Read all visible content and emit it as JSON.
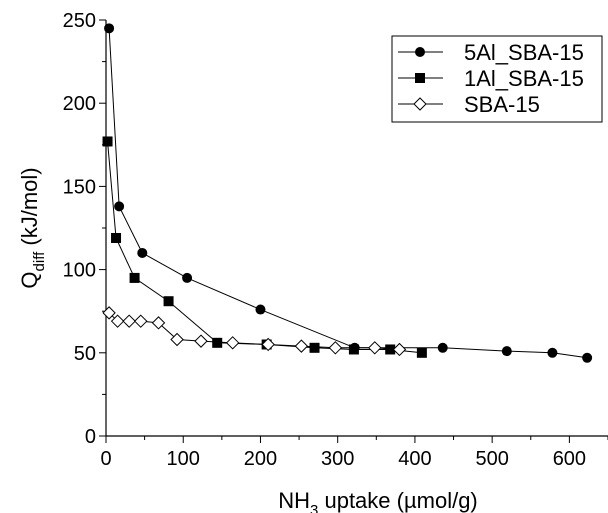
{
  "chart_data": {
    "type": "scatter",
    "xlabel_main": "NH",
    "xlabel_sub": "3",
    "xlabel_rest": " uptake (µmol/g)",
    "ylabel_main": "Q",
    "ylabel_sub": "diff",
    "ylabel_rest": " (kJ/mol)",
    "xlim": [
      0,
      650
    ],
    "ylim": [
      0,
      250
    ],
    "xticks": [
      0,
      100,
      200,
      300,
      400,
      500,
      600
    ],
    "yticks": [
      0,
      50,
      100,
      150,
      200,
      250
    ],
    "legend_position": "top-right",
    "series": [
      {
        "name": "5Al_SBA-15",
        "marker": "circle-filled",
        "color": "#000000",
        "points": [
          [
            4,
            245
          ],
          [
            17,
            138
          ],
          [
            47,
            110
          ],
          [
            105,
            95
          ],
          [
            200,
            76
          ],
          [
            322,
            53
          ],
          [
            436,
            53
          ],
          [
            519,
            51
          ],
          [
            578,
            50
          ],
          [
            623,
            47
          ]
        ]
      },
      {
        "name": "1Al_SBA-15",
        "marker": "square-filled",
        "color": "#000000",
        "points": [
          [
            2,
            177
          ],
          [
            13,
            119
          ],
          [
            37,
            95
          ],
          [
            81,
            81
          ],
          [
            144,
            56
          ],
          [
            208,
            55
          ],
          [
            270,
            53
          ],
          [
            321,
            52
          ],
          [
            368,
            52
          ],
          [
            409,
            50
          ]
        ]
      },
      {
        "name": "SBA-15",
        "marker": "diamond-open",
        "color": "#000000",
        "points": [
          [
            4,
            74
          ],
          [
            15,
            69
          ],
          [
            30,
            69
          ],
          [
            45,
            69
          ],
          [
            68,
            68
          ],
          [
            92,
            58
          ],
          [
            123,
            57
          ],
          [
            164,
            56
          ],
          [
            210,
            55
          ],
          [
            253,
            54
          ],
          [
            297,
            53
          ],
          [
            348,
            53
          ],
          [
            380,
            52
          ]
        ]
      }
    ]
  }
}
